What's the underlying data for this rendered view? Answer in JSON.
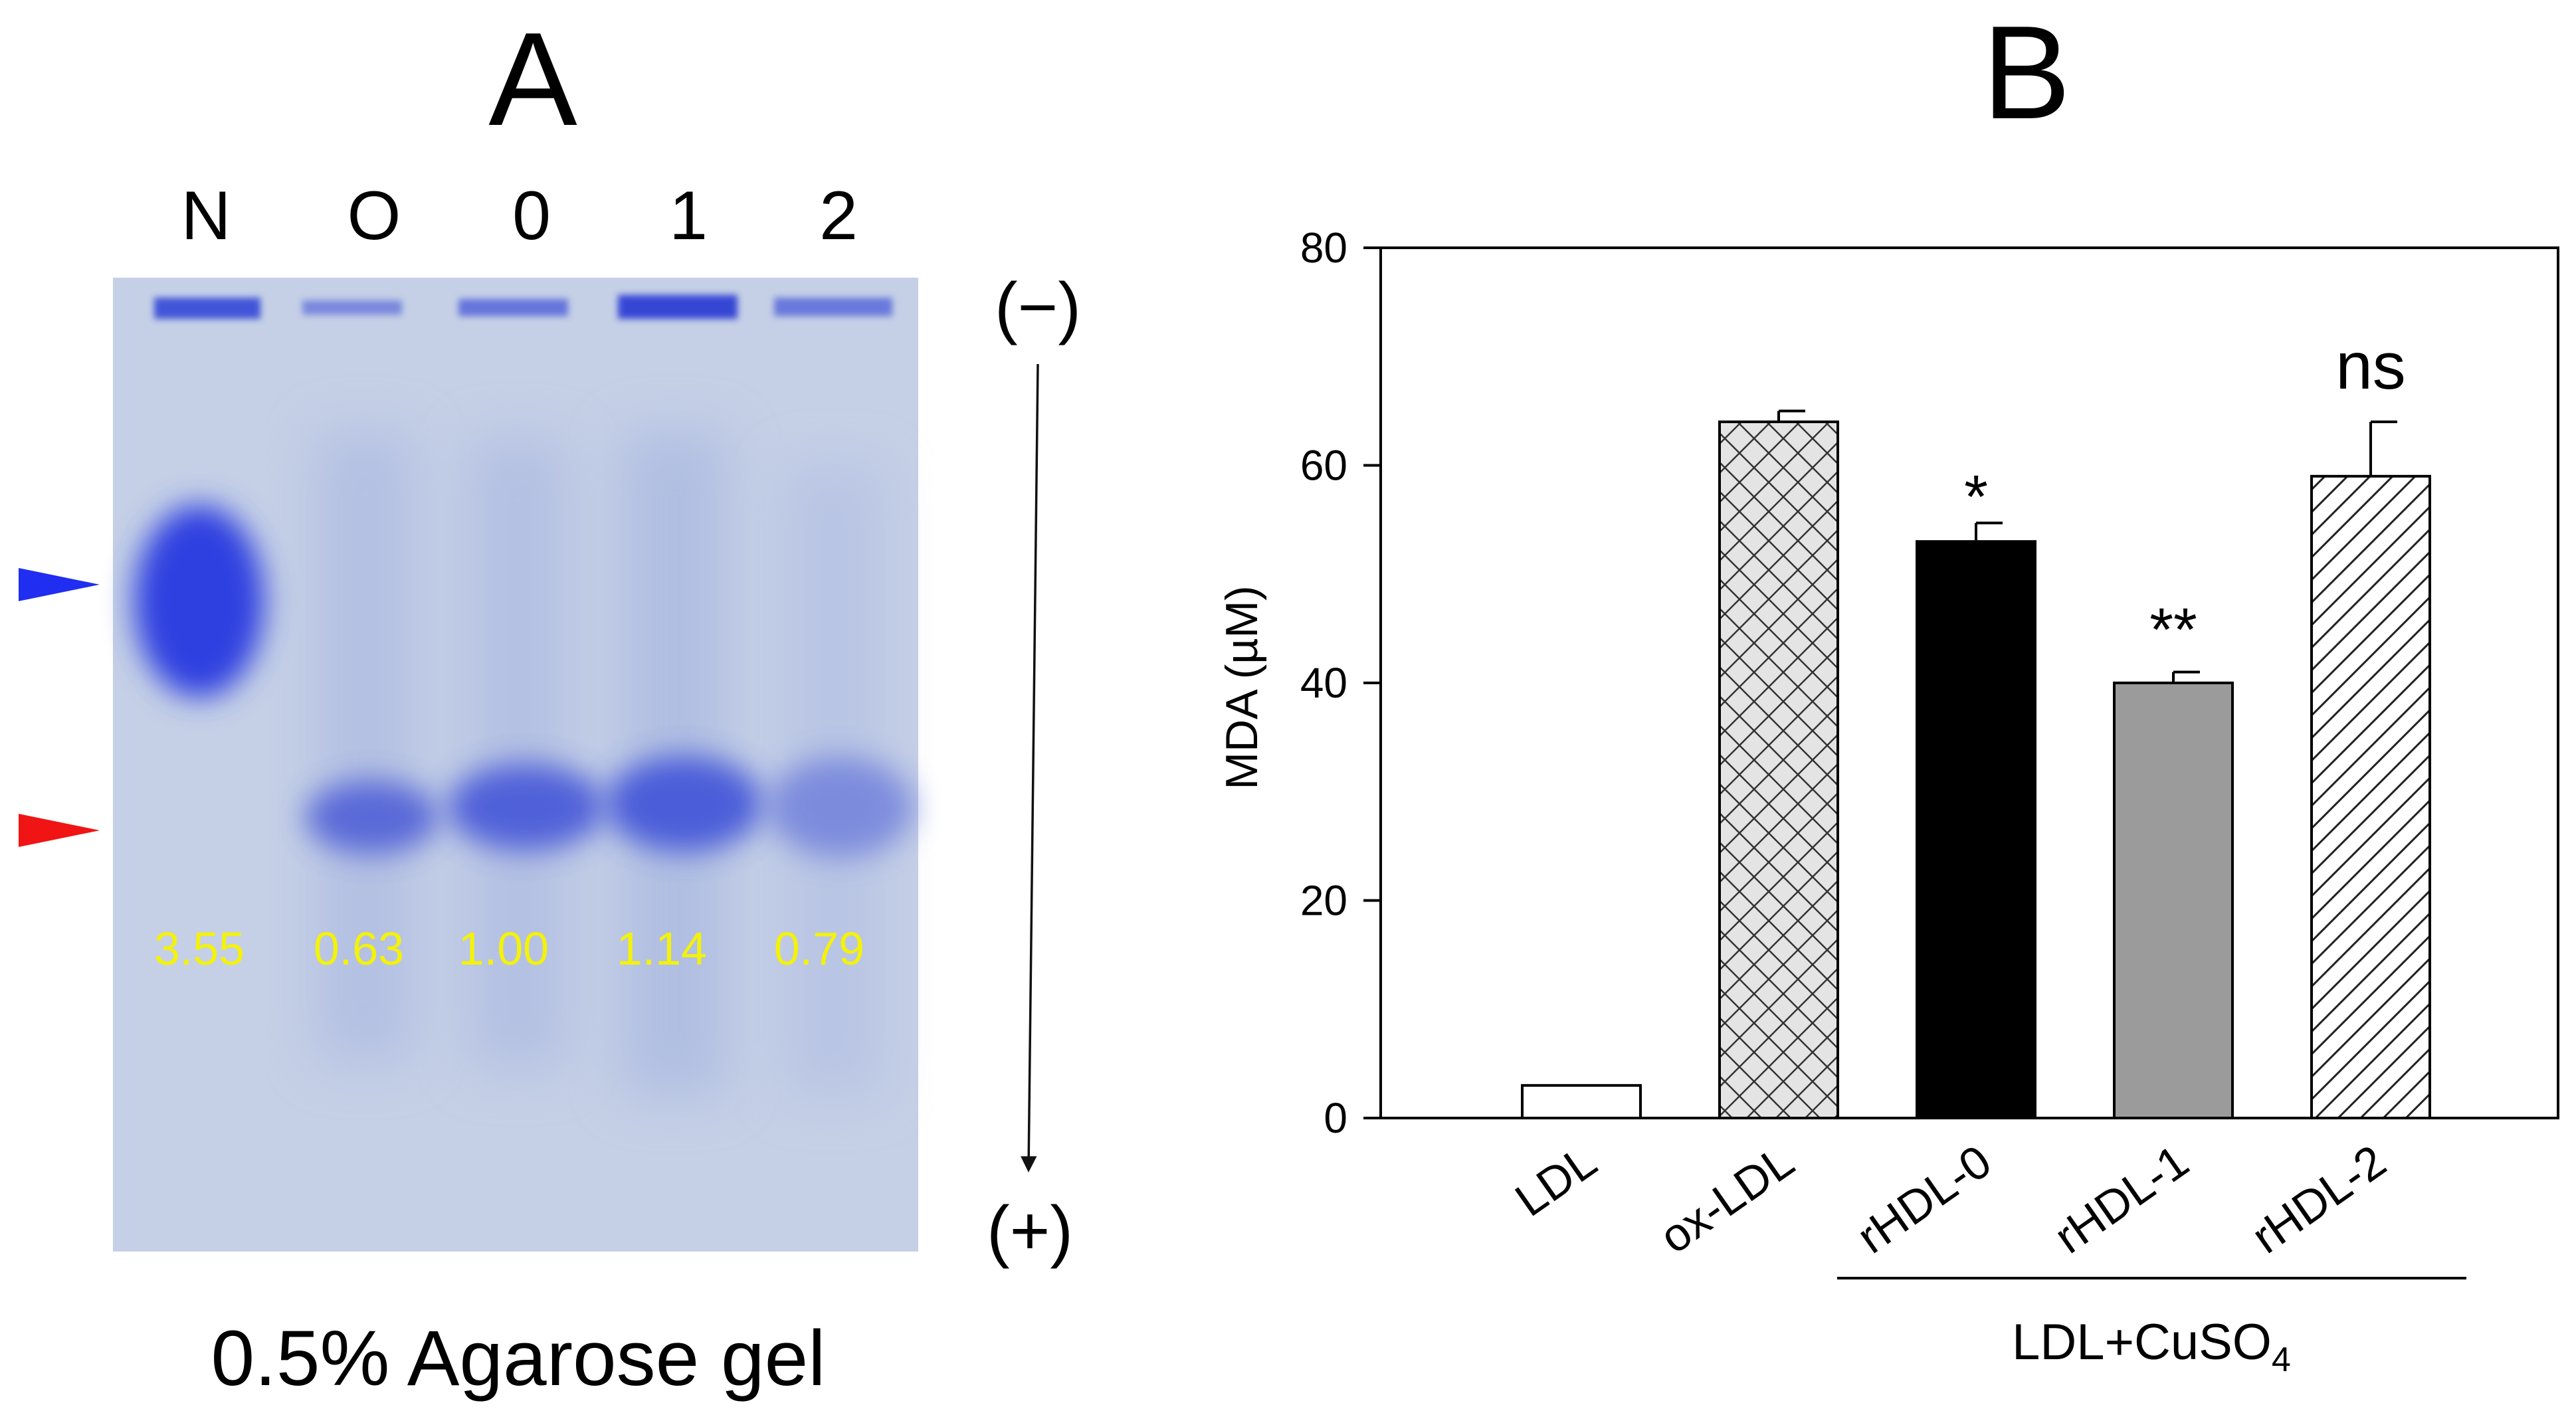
{
  "panels": {
    "a": {
      "letter": "A",
      "caption": "0.5% Agarose gel",
      "lanes": [
        "N",
        "O",
        "0",
        "1",
        "2"
      ],
      "band_ratios": [
        "3.55",
        "0.63",
        "1.00",
        "1.14",
        "0.79"
      ],
      "electrode_negative": "(−)",
      "electrode_positive": "(+)",
      "colors": {
        "gel_background": "#c5d0e6",
        "band": "#3a48de",
        "ratio_text": "#f4f20a",
        "blue_arrowhead": "#1f2ef0",
        "red_arrowhead": "#f01414"
      }
    },
    "b": {
      "letter": "B",
      "group_label": "LDL+CuSO",
      "group_label_subscript": "4"
    }
  },
  "chart_data": {
    "type": "bar",
    "title": "",
    "xlabel": "",
    "ylabel": "MDA (µM)",
    "ylim": [
      0,
      80
    ],
    "yticks": [
      "0",
      "20",
      "40",
      "60",
      "80"
    ],
    "ytick_values": [
      0,
      20,
      40,
      60,
      80
    ],
    "categories": [
      "LDL",
      "ox-LDL",
      "rHDL-0",
      "rHDL-1",
      "rHDL-2"
    ],
    "values": [
      3,
      64,
      53,
      40,
      59
    ],
    "errors": [
      0,
      1,
      1.7,
      1,
      5
    ],
    "significance": [
      "",
      "",
      "*",
      "**",
      "ns"
    ],
    "patterns": [
      "white",
      "crosshatch",
      "black",
      "gray",
      "diagonal"
    ],
    "grid": false,
    "legend": "none"
  }
}
